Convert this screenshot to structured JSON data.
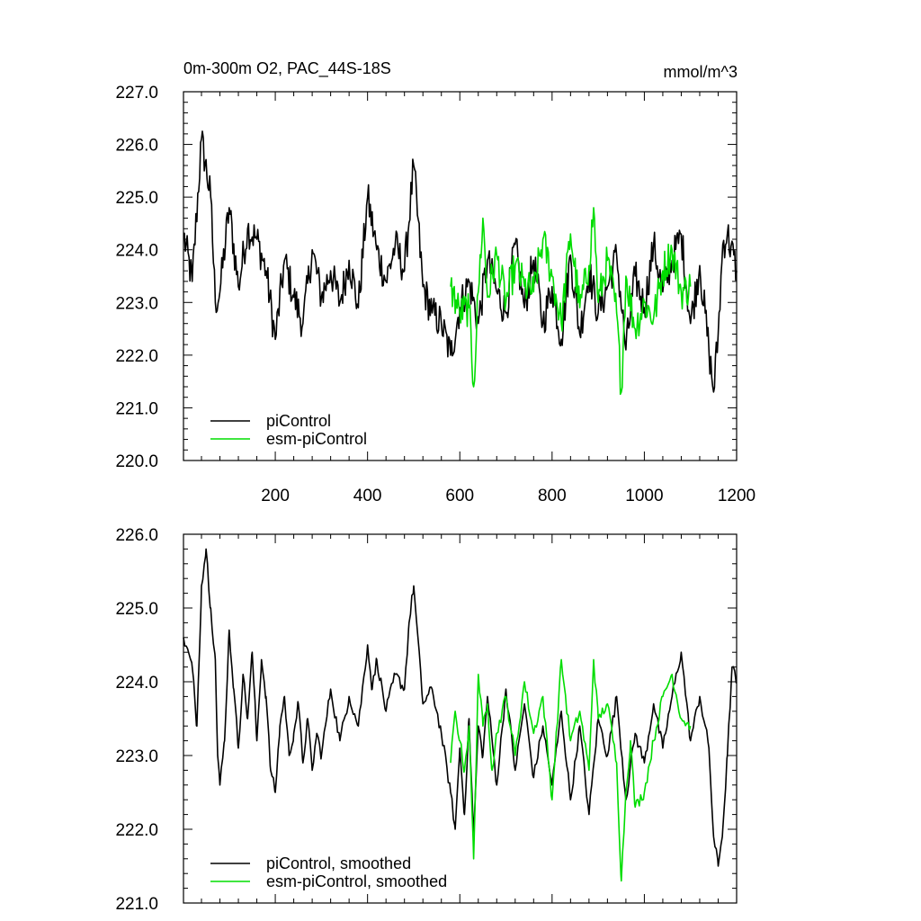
{
  "figure": {
    "title": "0m-300m O2, PAC_44S-18S",
    "units": "mmol/m^3"
  },
  "chart_data": [
    {
      "type": "line",
      "xlim": [
        1,
        1200
      ],
      "ylim": [
        220,
        227
      ],
      "x_ticks": [
        200,
        400,
        600,
        800,
        1000,
        1200
      ],
      "x_tick_labels": [
        "200",
        "400",
        "600",
        "800",
        "1000",
        "1200"
      ],
      "y_ticks": [
        220,
        221,
        222,
        223,
        224,
        225,
        226,
        227
      ],
      "y_tick_labels": [
        "220.0",
        "221.0",
        "222.0",
        "223.0",
        "224.0",
        "225.0",
        "226.0",
        "227.0"
      ],
      "grid": false,
      "legend_position": "bottom-left",
      "series": [
        {
          "name": "piControl",
          "color": "#000000",
          "x": [
            1,
            20,
            40,
            60,
            70,
            80,
            100,
            120,
            140,
            160,
            180,
            200,
            220,
            240,
            260,
            280,
            300,
            320,
            340,
            360,
            380,
            400,
            420,
            440,
            460,
            480,
            500,
            520,
            540,
            560,
            580,
            600,
            620,
            640,
            660,
            680,
            700,
            720,
            740,
            760,
            780,
            800,
            820,
            840,
            860,
            880,
            900,
            920,
            940,
            960,
            980,
            1000,
            1020,
            1040,
            1060,
            1080,
            1100,
            1120,
            1140,
            1150,
            1160,
            1170,
            1180,
            1200
          ],
          "y": [
            224.3,
            223.4,
            226.1,
            225.0,
            223.0,
            223.2,
            224.8,
            223.3,
            224.4,
            224.2,
            223.6,
            222.3,
            223.8,
            223.1,
            222.6,
            224.0,
            223.1,
            223.6,
            223.0,
            223.8,
            222.9,
            225.0,
            224.0,
            223.4,
            224.1,
            223.6,
            225.6,
            223.3,
            222.8,
            222.6,
            222.0,
            222.9,
            223.4,
            222.6,
            223.8,
            223.2,
            222.8,
            224.1,
            222.9,
            223.8,
            222.6,
            223.3,
            222.3,
            223.9,
            222.4,
            223.6,
            222.8,
            223.3,
            223.9,
            222.1,
            223.5,
            222.9,
            224.1,
            223.2,
            223.8,
            224.3,
            222.6,
            223.7,
            222.1,
            221.3,
            222.4,
            224.1,
            224.3,
            223.6
          ]
        },
        {
          "name": "esm-piControl",
          "color": "#00dd00",
          "x": [
            580,
            600,
            620,
            630,
            640,
            650,
            660,
            680,
            700,
            720,
            740,
            760,
            780,
            800,
            820,
            840,
            860,
            880,
            890,
            900,
            920,
            940,
            950,
            960,
            980,
            1000,
            1020,
            1040,
            1060,
            1080,
            1100
          ],
          "y": [
            223.3,
            222.8,
            222.9,
            221.4,
            223.2,
            224.6,
            223.1,
            223.9,
            223.0,
            223.7,
            223.3,
            223.2,
            224.2,
            223.5,
            222.6,
            224.3,
            222.9,
            223.7,
            224.8,
            223.0,
            223.8,
            222.8,
            221.3,
            223.5,
            222.5,
            223.0,
            222.7,
            223.6,
            224.0,
            223.2,
            223.3
          ]
        }
      ]
    },
    {
      "type": "line",
      "xlim": [
        1,
        1200
      ],
      "ylim": [
        221,
        226
      ],
      "x_ticks": [
        200,
        400,
        600,
        800,
        1000,
        1200
      ],
      "y_ticks": [
        221,
        222,
        223,
        224,
        225,
        226
      ],
      "y_tick_labels": [
        "221.0",
        "222.0",
        "223.0",
        "224.0",
        "225.0",
        "226.0"
      ],
      "grid": false,
      "legend_position": "bottom-left",
      "series": [
        {
          "name": "piControl, smoothed",
          "color": "#000000",
          "x": [
            1,
            20,
            30,
            40,
            50,
            60,
            70,
            75,
            80,
            90,
            100,
            110,
            120,
            130,
            140,
            150,
            160,
            170,
            180,
            190,
            200,
            210,
            220,
            230,
            240,
            250,
            260,
            270,
            280,
            290,
            300,
            320,
            340,
            360,
            380,
            400,
            410,
            420,
            440,
            460,
            480,
            490,
            500,
            520,
            540,
            560,
            580,
            590,
            600,
            610,
            620,
            630,
            640,
            650,
            660,
            680,
            700,
            720,
            740,
            760,
            780,
            800,
            820,
            840,
            860,
            880,
            900,
            920,
            940,
            960,
            980,
            1000,
            1020,
            1040,
            1060,
            1080,
            1100,
            1120,
            1140,
            1150,
            1160,
            1170,
            1180,
            1190,
            1200
          ],
          "y": [
            224.6,
            224.2,
            223.4,
            225.3,
            225.8,
            225.0,
            224.3,
            223.0,
            222.6,
            223.2,
            224.7,
            223.9,
            223.1,
            224.1,
            223.5,
            224.4,
            223.2,
            224.3,
            223.8,
            222.8,
            222.5,
            223.4,
            223.8,
            223.0,
            223.3,
            223.7,
            222.9,
            223.5,
            222.8,
            223.3,
            223.0,
            223.9,
            223.2,
            223.8,
            223.4,
            224.5,
            223.9,
            224.3,
            223.6,
            224.1,
            223.9,
            224.8,
            225.3,
            223.7,
            223.9,
            223.3,
            222.5,
            222.0,
            223.1,
            222.2,
            223.5,
            221.9,
            223.4,
            223.0,
            223.8,
            222.6,
            223.9,
            222.8,
            223.7,
            222.7,
            223.4,
            222.6,
            223.6,
            222.4,
            223.4,
            222.2,
            223.5,
            223.0,
            223.8,
            222.4,
            223.3,
            222.9,
            223.7,
            223.1,
            223.8,
            224.4,
            223.2,
            223.8,
            223.1,
            221.9,
            221.5,
            222.0,
            223.0,
            224.2,
            224.0
          ]
        },
        {
          "name": "esm-piControl, smoothed",
          "color": "#00dd00",
          "x": [
            580,
            590,
            600,
            610,
            620,
            630,
            640,
            650,
            660,
            670,
            680,
            700,
            720,
            740,
            760,
            780,
            800,
            820,
            840,
            860,
            880,
            890,
            900,
            920,
            940,
            950,
            960,
            970,
            980,
            1000,
            1020,
            1040,
            1060,
            1080,
            1100
          ],
          "y": [
            222.9,
            223.6,
            223.2,
            222.8,
            223.4,
            221.6,
            224.1,
            223.4,
            223.7,
            222.8,
            223.3,
            223.8,
            223.0,
            224.0,
            223.3,
            223.8,
            222.4,
            224.3,
            223.2,
            223.6,
            222.8,
            224.3,
            223.5,
            223.7,
            222.9,
            221.3,
            222.5,
            223.2,
            222.3,
            222.5,
            223.2,
            223.8,
            224.1,
            223.5,
            223.4
          ]
        }
      ]
    }
  ]
}
